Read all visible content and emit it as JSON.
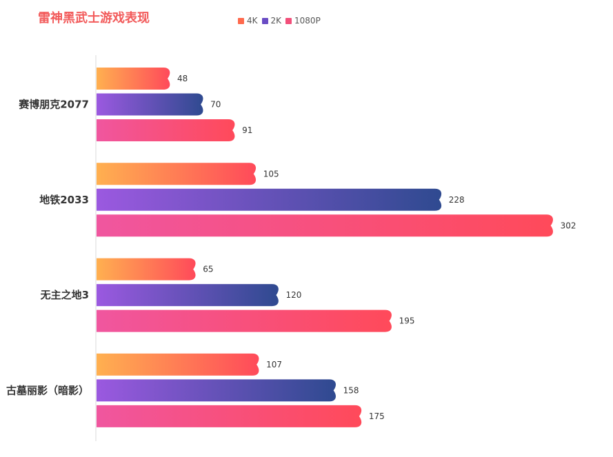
{
  "chart_data": {
    "type": "bar",
    "orientation": "horizontal",
    "title": "雷神黑武士游戏表现",
    "categories": [
      "赛博朋克2077",
      "地铁2033",
      "无主之地3",
      "古墓丽影（暗影）"
    ],
    "series": [
      {
        "name": "4K",
        "values": [
          48,
          105,
          65,
          107
        ],
        "color": "#ff6a4d",
        "gradient": [
          "#ffb050",
          "#ff4a5a"
        ]
      },
      {
        "name": "2K",
        "values": [
          70,
          228,
          120,
          158
        ],
        "color": "#6a4cc4",
        "gradient": [
          "#9b59e0",
          "#2f4a90"
        ]
      },
      {
        "name": "1080P",
        "values": [
          91,
          302,
          195,
          175
        ],
        "color": "#f24f7a",
        "gradient": [
          "#f0569f",
          "#ff4a5a"
        ]
      }
    ],
    "xlim": [
      0,
      320
    ],
    "grid": false,
    "legend_position": "top-center"
  }
}
